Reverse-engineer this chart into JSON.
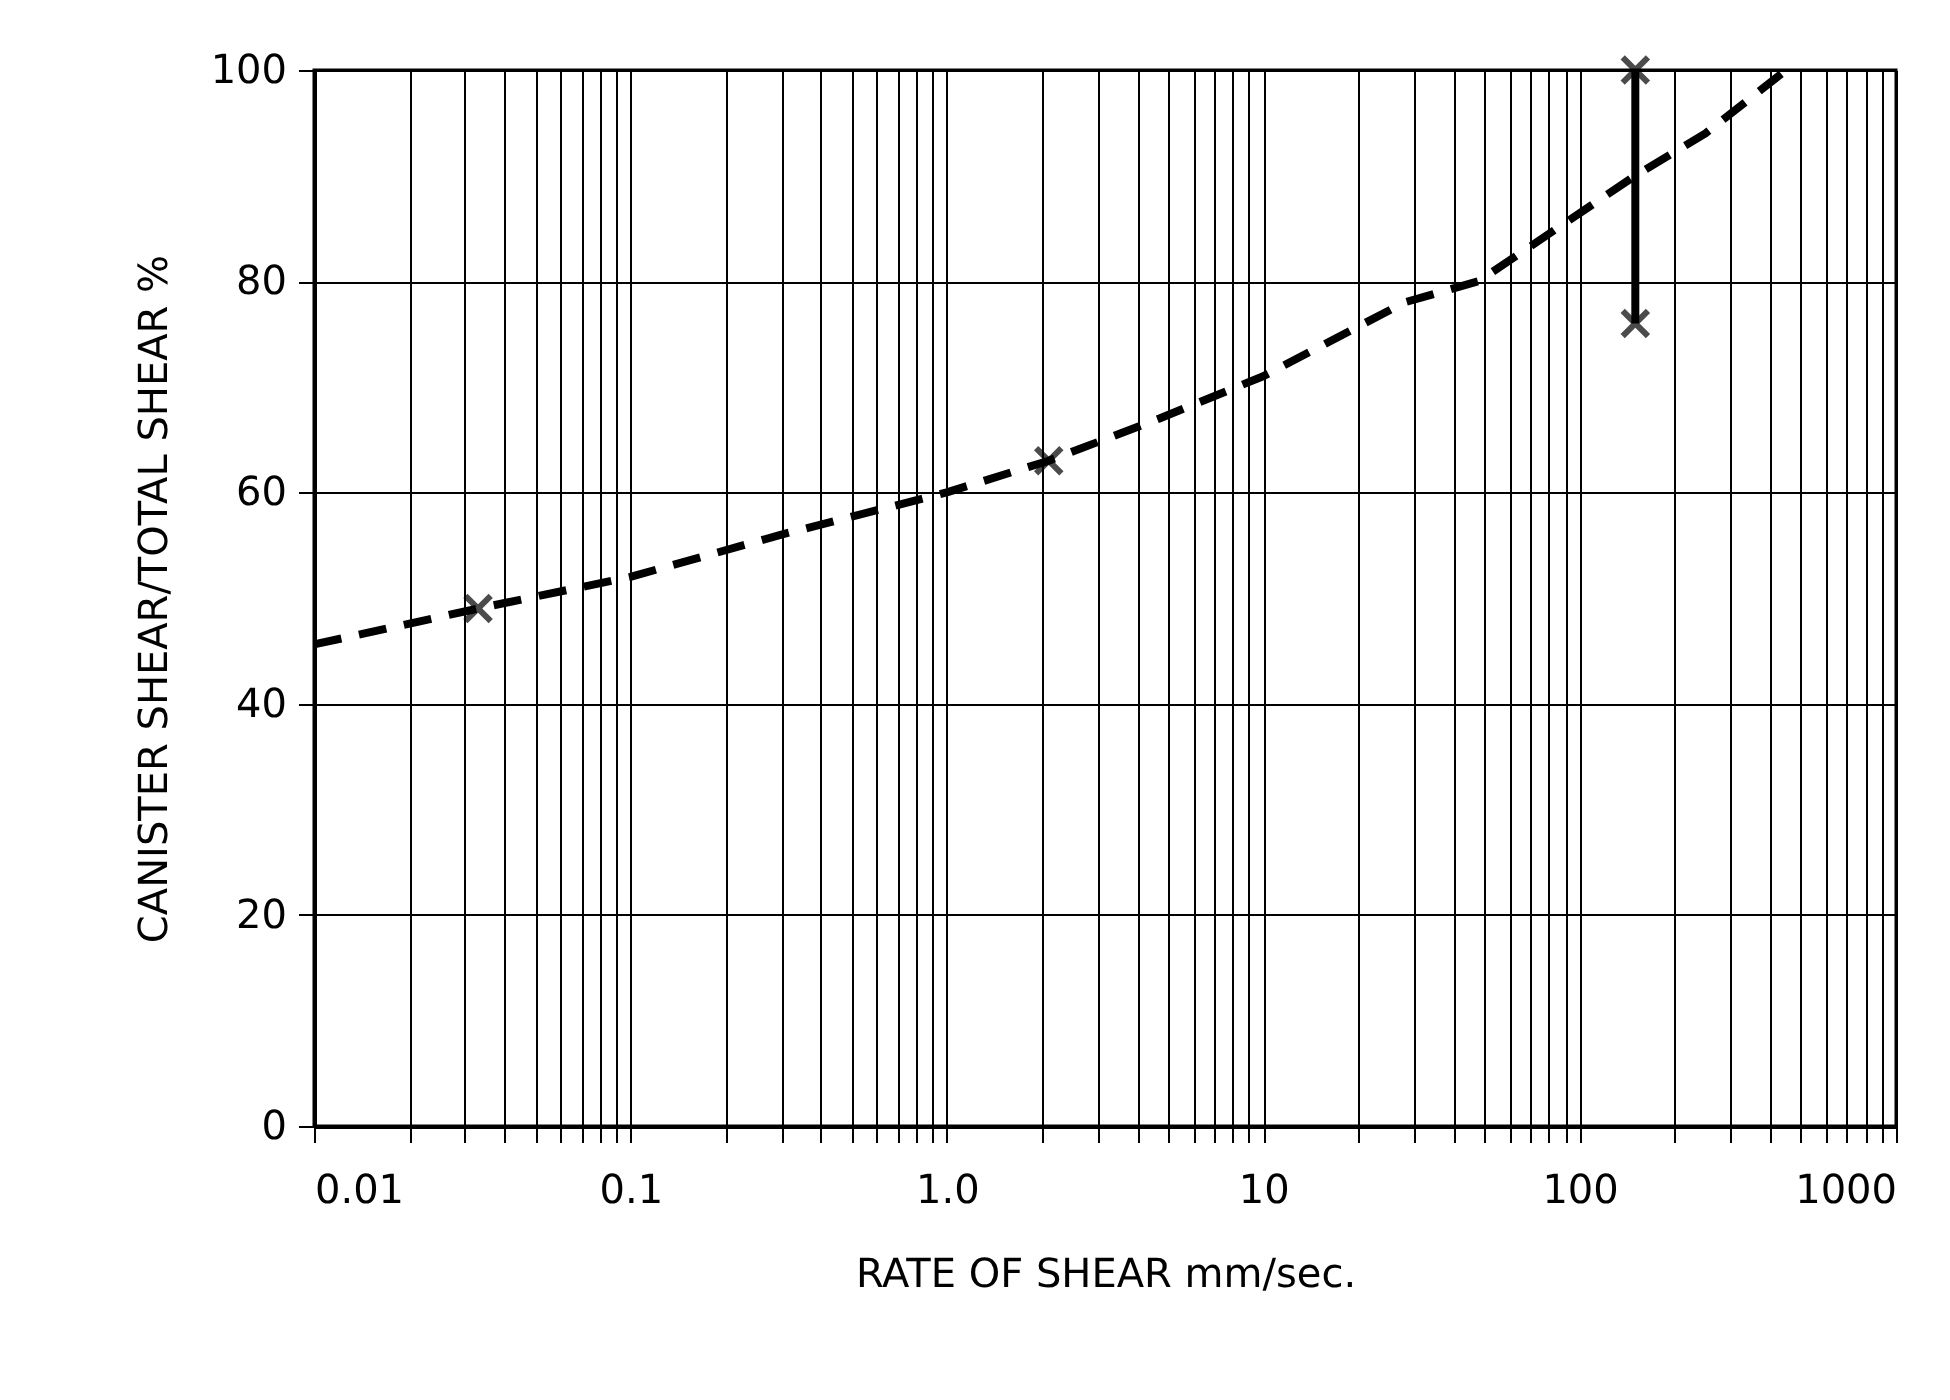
{
  "chart_data": {
    "type": "line",
    "xlabel": "RATE OF SHEAR  mm/sec.",
    "ylabel": "CANISTER SHEAR/TOTAL SHEAR %",
    "log": "x",
    "grid": true,
    "xlim": [
      0.01,
      1000
    ],
    "xticks": [
      {
        "value": 0.01,
        "label": "0.01"
      },
      {
        "value": 0.02,
        "label": null
      },
      {
        "value": 0.03,
        "label": null
      },
      {
        "value": 0.04,
        "label": null
      },
      {
        "value": 0.05,
        "label": null
      },
      {
        "value": 0.06,
        "label": null
      },
      {
        "value": 0.07,
        "label": null
      },
      {
        "value": 0.08,
        "label": null
      },
      {
        "value": 0.09,
        "label": null
      },
      {
        "value": 0.1,
        "label": "0.1"
      },
      {
        "value": 0.2,
        "label": null
      },
      {
        "value": 0.3,
        "label": null
      },
      {
        "value": 0.4,
        "label": null
      },
      {
        "value": 0.5,
        "label": null
      },
      {
        "value": 0.6,
        "label": null
      },
      {
        "value": 0.7,
        "label": null
      },
      {
        "value": 0.8,
        "label": null
      },
      {
        "value": 0.9,
        "label": null
      },
      {
        "value": 1,
        "label": "1.0"
      },
      {
        "value": 2,
        "label": null
      },
      {
        "value": 3,
        "label": null
      },
      {
        "value": 4,
        "label": null
      },
      {
        "value": 5,
        "label": null
      },
      {
        "value": 6,
        "label": null
      },
      {
        "value": 7,
        "label": null
      },
      {
        "value": 8,
        "label": null
      },
      {
        "value": 9,
        "label": null
      },
      10,
      {
        "value": 20,
        "label": null
      },
      {
        "value": 30,
        "label": null
      },
      {
        "value": 40,
        "label": null
      },
      {
        "value": 50,
        "label": null
      },
      {
        "value": 60,
        "label": null
      },
      {
        "value": 70,
        "label": null
      },
      {
        "value": 80,
        "label": null
      },
      {
        "value": 90,
        "label": null
      },
      100,
      {
        "value": 200,
        "label": null
      },
      {
        "value": 300,
        "label": null
      },
      {
        "value": 400,
        "label": null
      },
      {
        "value": 500,
        "label": null
      },
      {
        "value": 600,
        "label": null
      },
      {
        "value": 700,
        "label": null
      },
      {
        "value": 800,
        "label": null
      },
      {
        "value": 900,
        "label": null
      },
      1000
    ],
    "ylim": [
      0,
      100
    ],
    "yticks": [
      0,
      20,
      40,
      60,
      80,
      100
    ],
    "series": [
      {
        "line_style": "dashed",
        "marker": "none",
        "color": "#000000",
        "x": [
          0.01,
          0.033,
          0.1,
          0.3,
          1,
          2.1,
          4.7,
          10,
          28,
          48,
          150,
          250,
          450
        ],
        "values": [
          45.6,
          49,
          52,
          56,
          60,
          63,
          67,
          71,
          78,
          80,
          90,
          94,
          100
        ]
      },
      {
        "type": "scatter",
        "marker": "cross",
        "color": "#000000",
        "x": [
          0.033,
          2.1
        ],
        "values": [
          49,
          63
        ]
      },
      {
        "type": "line",
        "line_style": "solid",
        "marker": "cross",
        "color": "#000000",
        "x": [
          150,
          150
        ],
        "values": [
          76,
          100
        ]
      }
    ]
  }
}
